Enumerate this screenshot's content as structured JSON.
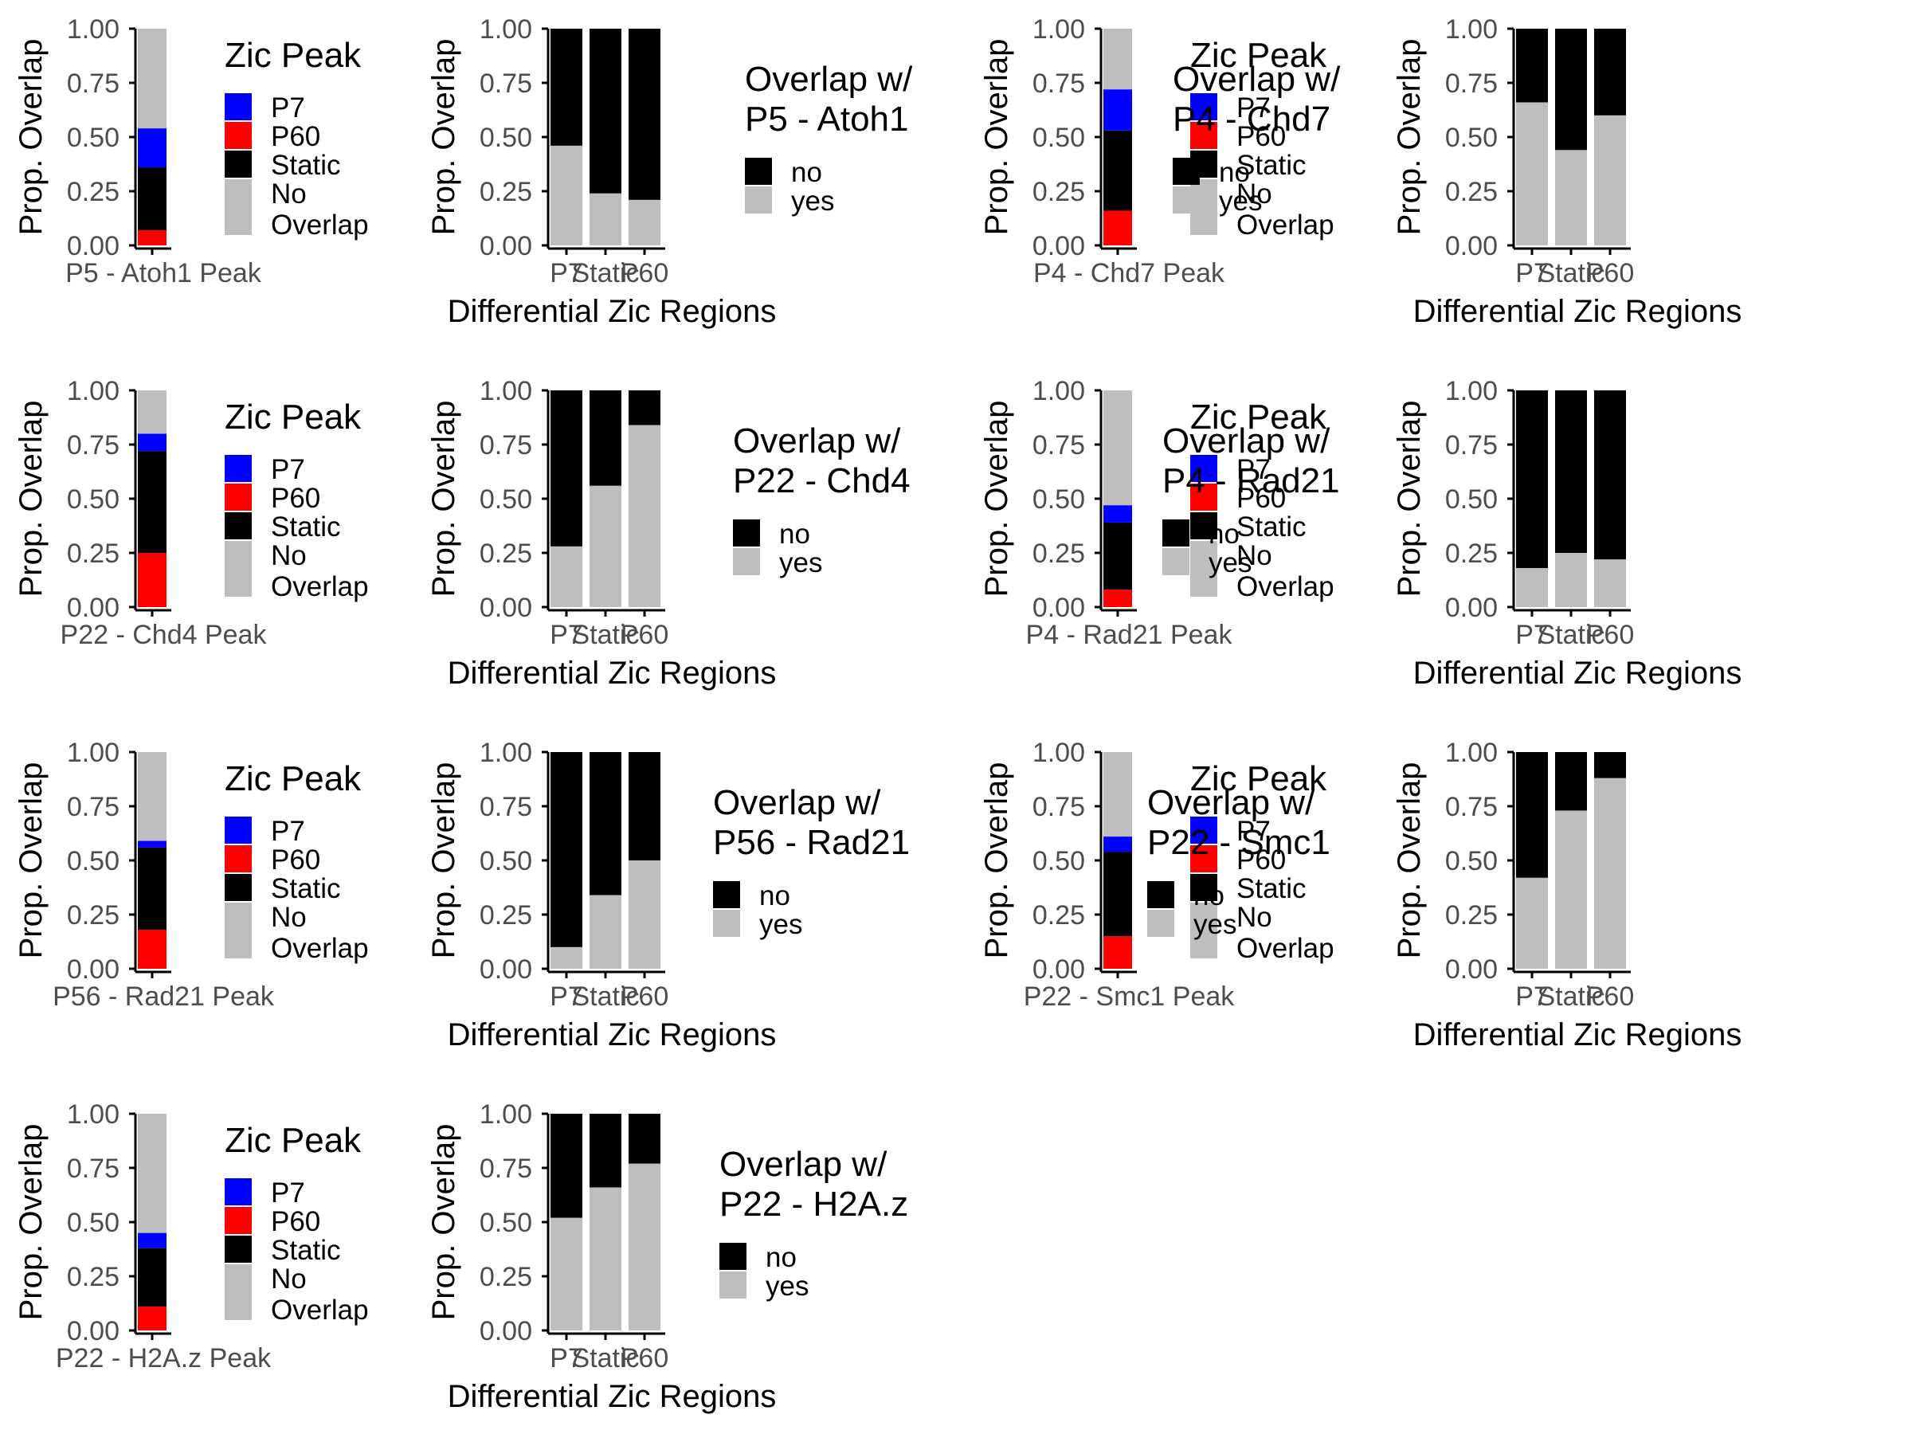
{
  "colors": {
    "P7": "#0000FF",
    "P60": "#FF0000",
    "Static": "#000000",
    "No Overlap": "#BEBEBE",
    "no": "#000000",
    "yes": "#BEBEBE"
  },
  "left_legend": {
    "title": "Zic Peak",
    "items": [
      {
        "key": "P7",
        "label": "P7",
        "lines": [
          "P7"
        ]
      },
      {
        "key": "P60",
        "label": "P60",
        "lines": [
          "P60"
        ]
      },
      {
        "key": "Static",
        "label": "Static",
        "lines": [
          "Static"
        ]
      },
      {
        "key": "No Overlap",
        "label": "No Overlap",
        "lines": [
          "No",
          "Overlap"
        ]
      }
    ]
  },
  "right_legend": {
    "items": [
      {
        "key": "no",
        "label": "no"
      },
      {
        "key": "yes",
        "label": "yes"
      }
    ]
  },
  "chart_data": [
    {
      "type": "bar",
      "stacked": true,
      "ylabel": "Prop. Overlap",
      "xlabel": "",
      "ylim": [
        0,
        1
      ],
      "yticks": [
        "0.00",
        "0.25",
        "0.50",
        "0.75",
        "1.00"
      ],
      "categories": [
        "P5 - Atoh1 Peak"
      ],
      "legend_title": "Zic Peak",
      "series": [
        {
          "name": "P60",
          "values": [
            0.07
          ]
        },
        {
          "name": "Static",
          "values": [
            0.29
          ]
        },
        {
          "name": "P7",
          "values": [
            0.18
          ]
        },
        {
          "name": "No Overlap",
          "values": [
            0.46
          ]
        }
      ]
    },
    {
      "type": "bar",
      "stacked": true,
      "ylabel": "Prop. Overlap",
      "xlabel": "Differential Zic Regions",
      "ylim": [
        0,
        1
      ],
      "yticks": [
        "0.00",
        "0.25",
        "0.50",
        "0.75",
        "1.00"
      ],
      "categories": [
        "P7",
        "Static",
        "P60"
      ],
      "legend_title": [
        "Overlap w/",
        "P5 - Atoh1"
      ],
      "series": [
        {
          "name": "yes",
          "values": [
            0.46,
            0.24,
            0.21
          ]
        },
        {
          "name": "no",
          "values": [
            0.54,
            0.76,
            0.79
          ]
        }
      ]
    },
    {
      "type": "bar",
      "stacked": true,
      "ylabel": "Prop. Overlap",
      "xlabel": "",
      "ylim": [
        0,
        1
      ],
      "yticks": [
        "0.00",
        "0.25",
        "0.50",
        "0.75",
        "1.00"
      ],
      "categories": [
        "P4 - Chd7 Peak"
      ],
      "legend_title": "Zic Peak",
      "series": [
        {
          "name": "P60",
          "values": [
            0.16
          ]
        },
        {
          "name": "Static",
          "values": [
            0.37
          ]
        },
        {
          "name": "P7",
          "values": [
            0.19
          ]
        },
        {
          "name": "No Overlap",
          "values": [
            0.28
          ]
        }
      ]
    },
    {
      "type": "bar",
      "stacked": true,
      "ylabel": "Prop. Overlap",
      "xlabel": "Differential Zic Regions",
      "ylim": [
        0,
        1
      ],
      "yticks": [
        "0.00",
        "0.25",
        "0.50",
        "0.75",
        "1.00"
      ],
      "categories": [
        "P7",
        "Static",
        "P60"
      ],
      "legend_title": [
        "Overlap w/",
        "P4 - Chd7"
      ],
      "series": [
        {
          "name": "yes",
          "values": [
            0.66,
            0.44,
            0.6
          ]
        },
        {
          "name": "no",
          "values": [
            0.34,
            0.56,
            0.4
          ]
        }
      ]
    },
    {
      "type": "bar",
      "stacked": true,
      "ylabel": "Prop. Overlap",
      "xlabel": "",
      "ylim": [
        0,
        1
      ],
      "yticks": [
        "0.00",
        "0.25",
        "0.50",
        "0.75",
        "1.00"
      ],
      "categories": [
        "P22 - Chd4 Peak"
      ],
      "legend_title": "Zic Peak",
      "series": [
        {
          "name": "P60",
          "values": [
            0.25
          ]
        },
        {
          "name": "Static",
          "values": [
            0.47
          ]
        },
        {
          "name": "P7",
          "values": [
            0.08
          ]
        },
        {
          "name": "No Overlap",
          "values": [
            0.2
          ]
        }
      ]
    },
    {
      "type": "bar",
      "stacked": true,
      "ylabel": "Prop. Overlap",
      "xlabel": "Differential Zic Regions",
      "ylim": [
        0,
        1
      ],
      "yticks": [
        "0.00",
        "0.25",
        "0.50",
        "0.75",
        "1.00"
      ],
      "categories": [
        "P7",
        "Static",
        "P60"
      ],
      "legend_title": [
        "Overlap w/",
        "P22 - Chd4"
      ],
      "series": [
        {
          "name": "yes",
          "values": [
            0.28,
            0.56,
            0.84
          ]
        },
        {
          "name": "no",
          "values": [
            0.72,
            0.44,
            0.16
          ]
        }
      ]
    },
    {
      "type": "bar",
      "stacked": true,
      "ylabel": "Prop. Overlap",
      "xlabel": "",
      "ylim": [
        0,
        1
      ],
      "yticks": [
        "0.00",
        "0.25",
        "0.50",
        "0.75",
        "1.00"
      ],
      "categories": [
        "P4 - Rad21 Peak"
      ],
      "legend_title": "Zic Peak",
      "series": [
        {
          "name": "P60",
          "values": [
            0.08
          ]
        },
        {
          "name": "Static",
          "values": [
            0.31
          ]
        },
        {
          "name": "P7",
          "values": [
            0.08
          ]
        },
        {
          "name": "No Overlap",
          "values": [
            0.53
          ]
        }
      ]
    },
    {
      "type": "bar",
      "stacked": true,
      "ylabel": "Prop. Overlap",
      "xlabel": "Differential Zic Regions",
      "ylim": [
        0,
        1
      ],
      "yticks": [
        "0.00",
        "0.25",
        "0.50",
        "0.75",
        "1.00"
      ],
      "categories": [
        "P7",
        "Static",
        "P60"
      ],
      "legend_title": [
        "Overlap w/",
        "P4 - Rad21"
      ],
      "series": [
        {
          "name": "yes",
          "values": [
            0.18,
            0.25,
            0.22
          ]
        },
        {
          "name": "no",
          "values": [
            0.82,
            0.75,
            0.78
          ]
        }
      ]
    },
    {
      "type": "bar",
      "stacked": true,
      "ylabel": "Prop. Overlap",
      "xlabel": "",
      "ylim": [
        0,
        1
      ],
      "yticks": [
        "0.00",
        "0.25",
        "0.50",
        "0.75",
        "1.00"
      ],
      "categories": [
        "P56 - Rad21 Peak"
      ],
      "legend_title": "Zic Peak",
      "series": [
        {
          "name": "P60",
          "values": [
            0.18
          ]
        },
        {
          "name": "Static",
          "values": [
            0.38
          ]
        },
        {
          "name": "P7",
          "values": [
            0.03
          ]
        },
        {
          "name": "No Overlap",
          "values": [
            0.41
          ]
        }
      ]
    },
    {
      "type": "bar",
      "stacked": true,
      "ylabel": "Prop. Overlap",
      "xlabel": "Differential Zic Regions",
      "ylim": [
        0,
        1
      ],
      "yticks": [
        "0.00",
        "0.25",
        "0.50",
        "0.75",
        "1.00"
      ],
      "categories": [
        "P7",
        "Static",
        "P60"
      ],
      "legend_title": [
        "Overlap w/",
        "P56 - Rad21"
      ],
      "series": [
        {
          "name": "yes",
          "values": [
            0.1,
            0.34,
            0.5
          ]
        },
        {
          "name": "no",
          "values": [
            0.9,
            0.66,
            0.5
          ]
        }
      ]
    },
    {
      "type": "bar",
      "stacked": true,
      "ylabel": "Prop. Overlap",
      "xlabel": "",
      "ylim": [
        0,
        1
      ],
      "yticks": [
        "0.00",
        "0.25",
        "0.50",
        "0.75",
        "1.00"
      ],
      "categories": [
        "P22 - Smc1 Peak"
      ],
      "legend_title": "Zic Peak",
      "series": [
        {
          "name": "P60",
          "values": [
            0.15
          ]
        },
        {
          "name": "Static",
          "values": [
            0.39
          ]
        },
        {
          "name": "P7",
          "values": [
            0.07
          ]
        },
        {
          "name": "No Overlap",
          "values": [
            0.39
          ]
        }
      ]
    },
    {
      "type": "bar",
      "stacked": true,
      "ylabel": "Prop. Overlap",
      "xlabel": "Differential Zic Regions",
      "ylim": [
        0,
        1
      ],
      "yticks": [
        "0.00",
        "0.25",
        "0.50",
        "0.75",
        "1.00"
      ],
      "categories": [
        "P7",
        "Static",
        "P60"
      ],
      "legend_title": [
        "Overlap w/",
        "P22 - Smc1"
      ],
      "series": [
        {
          "name": "yes",
          "values": [
            0.42,
            0.73,
            0.88
          ]
        },
        {
          "name": "no",
          "values": [
            0.58,
            0.27,
            0.12
          ]
        }
      ]
    },
    {
      "type": "bar",
      "stacked": true,
      "ylabel": "Prop. Overlap",
      "xlabel": "",
      "ylim": [
        0,
        1
      ],
      "yticks": [
        "0.00",
        "0.25",
        "0.50",
        "0.75",
        "1.00"
      ],
      "categories": [
        "P22 - H2A.z Peak"
      ],
      "legend_title": "Zic Peak",
      "series": [
        {
          "name": "P60",
          "values": [
            0.11
          ]
        },
        {
          "name": "Static",
          "values": [
            0.27
          ]
        },
        {
          "name": "P7",
          "values": [
            0.07
          ]
        },
        {
          "name": "No Overlap",
          "values": [
            0.55
          ]
        }
      ]
    },
    {
      "type": "bar",
      "stacked": true,
      "ylabel": "Prop. Overlap",
      "xlabel": "Differential Zic Regions",
      "ylim": [
        0,
        1
      ],
      "yticks": [
        "0.00",
        "0.25",
        "0.50",
        "0.75",
        "1.00"
      ],
      "categories": [
        "P7",
        "Static",
        "P60"
      ],
      "legend_title": [
        "Overlap w/",
        "P22 - H2A.z"
      ],
      "series": [
        {
          "name": "yes",
          "values": [
            0.52,
            0.66,
            0.77
          ]
        },
        {
          "name": "no",
          "values": [
            0.48,
            0.34,
            0.23
          ]
        }
      ]
    }
  ]
}
